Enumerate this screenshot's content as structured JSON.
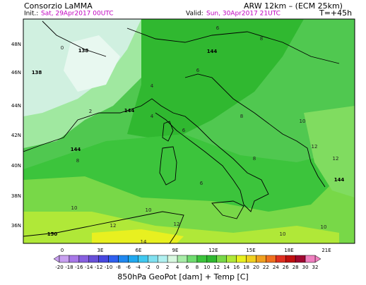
{
  "header": {
    "org": "Consorzio LaMMA",
    "model": "ARW 12km – (ECM 25km)",
    "init_label": "Init.:",
    "init_time": "Sat, 29Apr2017 00UTC",
    "valid_label": "Valid:",
    "valid_time": "Sun, 30Apr2017 21UTC",
    "lead": "T=+45h"
  },
  "map": {
    "lat_labels": [
      "48N",
      "46N",
      "44N",
      "42N",
      "40N",
      "38N",
      "36N"
    ],
    "lon_labels": [
      "0",
      "3E",
      "6E",
      "9E",
      "12E",
      "15E",
      "18E",
      "21E"
    ],
    "contour_labels": [
      138,
      144,
      138,
      144,
      144,
      144,
      150,
      6,
      8,
      6,
      4,
      2,
      0,
      4,
      6,
      8,
      10,
      12,
      8,
      10,
      10,
      12,
      12,
      14,
      10,
      10,
      8,
      6,
      12
    ]
  },
  "legend": {
    "ticks": [
      -20,
      -18,
      -16,
      -14,
      -12,
      -10,
      -8,
      -6,
      -4,
      -2,
      0,
      2,
      4,
      6,
      8,
      10,
      12,
      14,
      16,
      18,
      20,
      22,
      24,
      26,
      28,
      30,
      32
    ],
    "colors": [
      "#c8a0f0",
      "#a878e8",
      "#8860e0",
      "#6850d8",
      "#4848e0",
      "#3060f0",
      "#2088f0",
      "#20a8f0",
      "#40c8f0",
      "#80e0f0",
      "#b0f0f0",
      "#d8f8e0",
      "#a8eca8",
      "#70dc70",
      "#3cc43c",
      "#30b830",
      "#78d848",
      "#b0e838",
      "#e8f020",
      "#f0d020",
      "#f0a020",
      "#f07020",
      "#e03020",
      "#c01010",
      "#a00830",
      "#f080c0"
    ],
    "title": "850hPa GeoPot [dam] + Temp [C]"
  }
}
